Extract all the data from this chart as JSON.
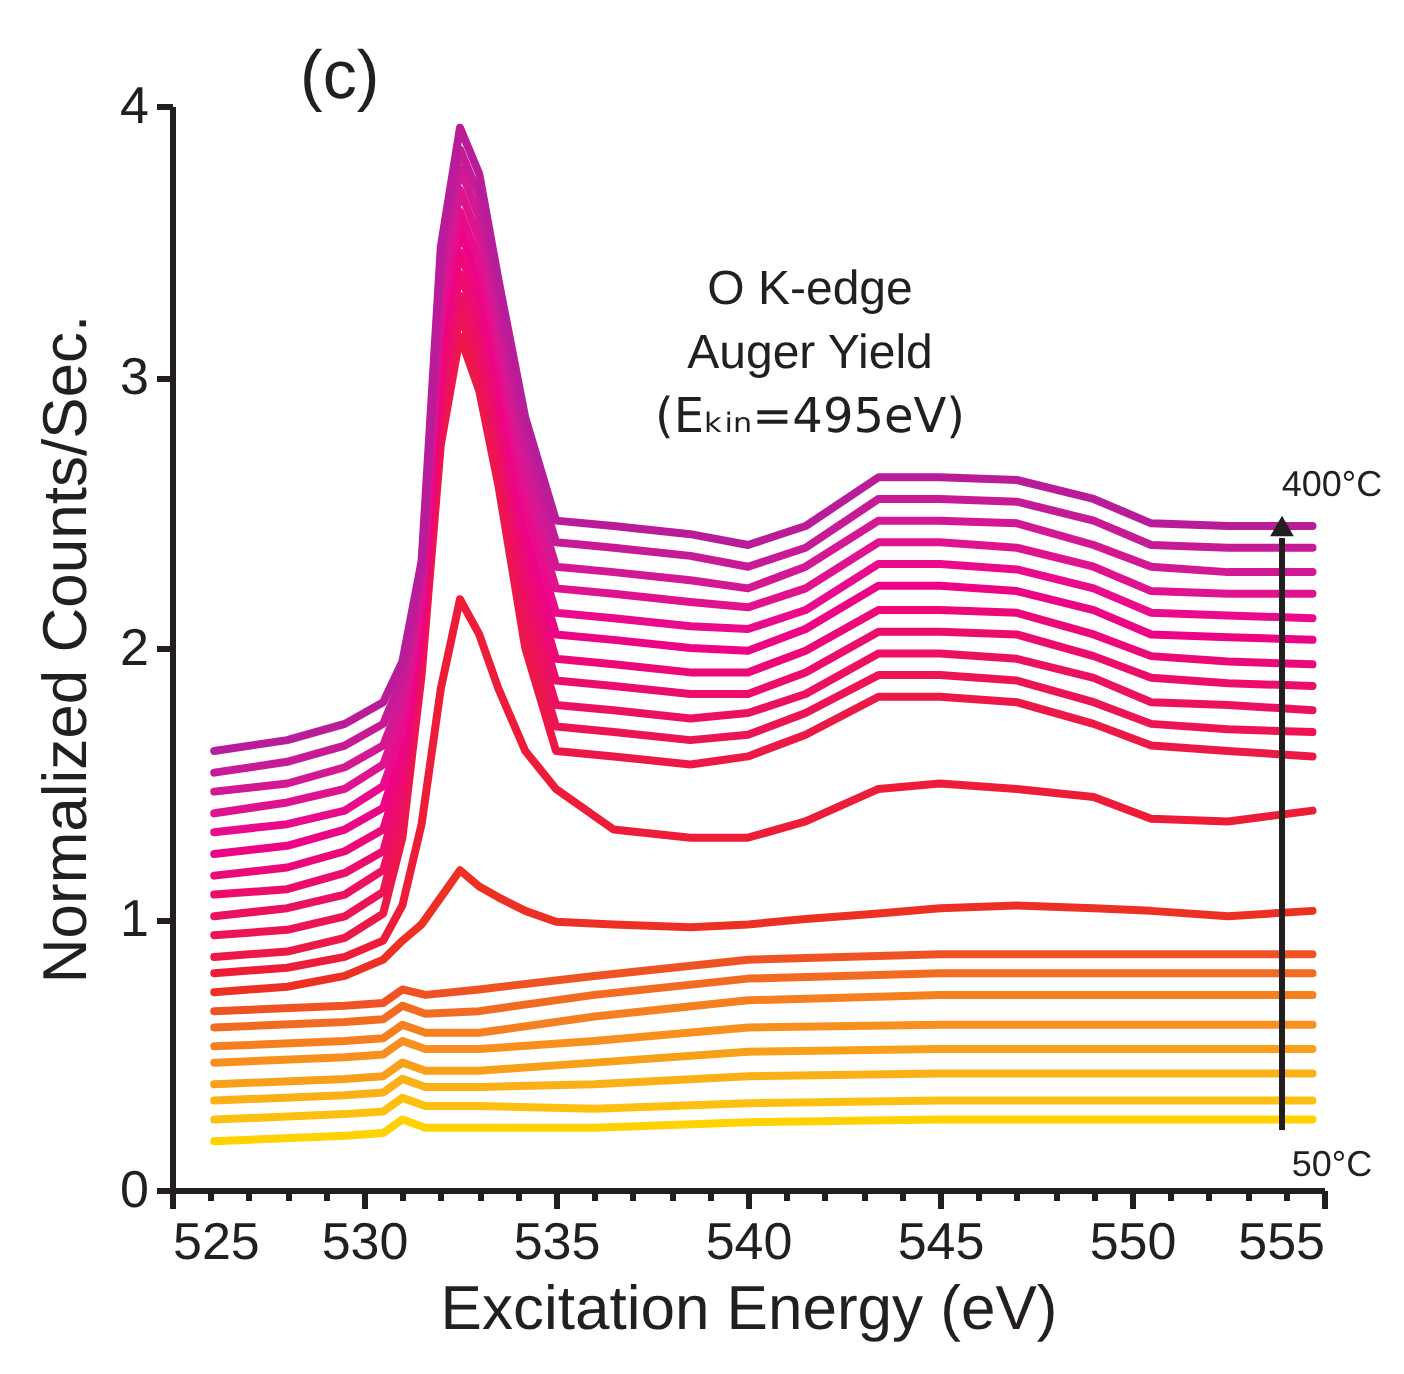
{
  "chart_data": {
    "type": "line",
    "xlabel": "Excitation Energy (eV)",
    "ylabel": "Normalized Counts/Sec.",
    "xlim": [
      525,
      555
    ],
    "ylim": [
      0,
      4
    ],
    "xticks": [
      525,
      {
        "value": 526,
        "label": null
      },
      {
        "value": 527,
        "label": null
      },
      {
        "value": 528,
        "label": null
      },
      {
        "value": 529,
        "label": null
      },
      530,
      {
        "value": 531,
        "label": null
      },
      {
        "value": 532,
        "label": null
      },
      {
        "value": 533,
        "label": null
      },
      {
        "value": 534,
        "label": null
      },
      535,
      {
        "value": 536,
        "label": null
      },
      {
        "value": 537,
        "label": null
      },
      {
        "value": 538,
        "label": null
      },
      {
        "value": 539,
        "label": null
      },
      540,
      {
        "value": 541,
        "label": null
      },
      {
        "value": 542,
        "label": null
      },
      {
        "value": 543,
        "label": null
      },
      {
        "value": 544,
        "label": null
      },
      545,
      {
        "value": 546,
        "label": null
      },
      {
        "value": 547,
        "label": null
      },
      {
        "value": 548,
        "label": null
      },
      {
        "value": 549,
        "label": null
      },
      550,
      {
        "value": 551,
        "label": null
      },
      {
        "value": 552,
        "label": null
      },
      {
        "value": 553,
        "label": null
      },
      {
        "value": 554,
        "label": null
      },
      555
    ],
    "yticks": [
      0,
      1,
      2,
      3,
      4
    ],
    "grid": false,
    "legend": false,
    "marker": "none",
    "line_style": "solid",
    "annotations": [
      "(c)",
      "O K-edge",
      "Auger Yield",
      "(Eₖᵢₙ=495eV)",
      "400°C",
      "50°C"
    ],
    "x": [
      526.1,
      528,
      529.5,
      530.5,
      531,
      531.5,
      532,
      532.5,
      533,
      533.5,
      534.2,
      535,
      536.5,
      538.5,
      540,
      541.5,
      543.4,
      545,
      547,
      549,
      550.5,
      552.5,
      554.7
    ],
    "series": [
      {
        "color": "#ffd200",
        "x": [
          526.1,
          529.5,
          530.5,
          531,
          531.6,
          533,
          536,
          540,
          545,
          550,
          554.7
        ],
        "values": [
          0.18,
          0.2,
          0.21,
          0.26,
          0.23,
          0.23,
          0.23,
          0.25,
          0.26,
          0.26,
          0.26
        ]
      },
      {
        "color": "#fdc010",
        "x": [
          526.1,
          529.5,
          530.5,
          531,
          531.6,
          533,
          536,
          540,
          545,
          550,
          554.7
        ],
        "values": [
          0.26,
          0.28,
          0.29,
          0.34,
          0.31,
          0.31,
          0.3,
          0.32,
          0.33,
          0.33,
          0.33
        ]
      },
      {
        "color": "#fbb017",
        "x": [
          526.1,
          529.5,
          530.5,
          531,
          531.6,
          533,
          536,
          540,
          545,
          550,
          554.7
        ],
        "values": [
          0.33,
          0.35,
          0.36,
          0.41,
          0.38,
          0.38,
          0.39,
          0.42,
          0.43,
          0.43,
          0.43
        ]
      },
      {
        "color": "#f9a01b",
        "x": [
          526.1,
          529.5,
          530.5,
          531,
          531.6,
          533,
          536,
          540,
          545,
          550,
          554.7
        ],
        "values": [
          0.39,
          0.41,
          0.42,
          0.47,
          0.44,
          0.44,
          0.47,
          0.51,
          0.52,
          0.52,
          0.52
        ]
      },
      {
        "color": "#f7901e",
        "x": [
          526.1,
          529.5,
          530.5,
          531,
          531.6,
          533,
          536,
          540,
          545,
          550,
          554.7
        ],
        "values": [
          0.47,
          0.49,
          0.5,
          0.55,
          0.52,
          0.52,
          0.55,
          0.6,
          0.61,
          0.61,
          0.61
        ]
      },
      {
        "color": "#f58020",
        "x": [
          526.1,
          529.5,
          530.5,
          531,
          531.6,
          533,
          536,
          540,
          545,
          550,
          554.7
        ],
        "values": [
          0.53,
          0.55,
          0.56,
          0.61,
          0.58,
          0.58,
          0.64,
          0.7,
          0.72,
          0.72,
          0.72
        ]
      },
      {
        "color": "#f26b22",
        "x": [
          526.1,
          529.5,
          530.5,
          531,
          531.6,
          533,
          536,
          540,
          545,
          550,
          554.7
        ],
        "values": [
          0.6,
          0.62,
          0.63,
          0.68,
          0.65,
          0.66,
          0.72,
          0.78,
          0.8,
          0.8,
          0.8
        ]
      },
      {
        "color": "#ef5323",
        "x": [
          526.1,
          529.5,
          530.5,
          531,
          531.6,
          533,
          536,
          540,
          545,
          550,
          554.7
        ],
        "values": [
          0.66,
          0.68,
          0.69,
          0.74,
          0.72,
          0.74,
          0.79,
          0.85,
          0.87,
          0.87,
          0.87
        ]
      },
      {
        "color": "#ed3024",
        "values": [
          0.73,
          0.75,
          0.79,
          0.85,
          0.92,
          0.98,
          1.08,
          1.18,
          1.12,
          1.08,
          1.03,
          0.99,
          0.98,
          0.97,
          0.98,
          1.0,
          1.02,
          1.04,
          1.05,
          1.04,
          1.03,
          1.01,
          1.03
        ]
      },
      {
        "color": "#ed1c38",
        "values": [
          0.8,
          0.82,
          0.86,
          0.92,
          1.05,
          1.35,
          1.85,
          2.18,
          2.05,
          1.85,
          1.62,
          1.48,
          1.33,
          1.3,
          1.3,
          1.36,
          1.48,
          1.5,
          1.48,
          1.45,
          1.37,
          1.36,
          1.4
        ]
      },
      {
        "color": "#ec1848",
        "values": [
          0.86,
          0.88,
          0.93,
          1.02,
          1.3,
          1.9,
          2.75,
          3.15,
          2.95,
          2.6,
          2.0,
          1.62,
          1.6,
          1.57,
          1.6,
          1.68,
          1.82,
          1.82,
          1.8,
          1.72,
          1.64,
          1.62,
          1.6
        ]
      },
      {
        "color": "#ec1455",
        "values": [
          0.94,
          0.96,
          1.01,
          1.1,
          1.37,
          1.94,
          2.82,
          3.23,
          3.03,
          2.68,
          2.09,
          1.71,
          1.69,
          1.66,
          1.68,
          1.76,
          1.9,
          1.9,
          1.88,
          1.8,
          1.72,
          1.7,
          1.69
        ]
      },
      {
        "color": "#ec1060",
        "values": [
          1.01,
          1.04,
          1.09,
          1.18,
          1.43,
          1.98,
          2.9,
          3.3,
          3.11,
          2.75,
          2.17,
          1.79,
          1.77,
          1.74,
          1.76,
          1.83,
          1.98,
          1.98,
          1.96,
          1.89,
          1.8,
          1.79,
          1.77
        ]
      },
      {
        "color": "#ec0c6c",
        "values": [
          1.09,
          1.11,
          1.17,
          1.25,
          1.5,
          2.03,
          2.97,
          3.38,
          3.19,
          2.83,
          2.26,
          1.88,
          1.86,
          1.83,
          1.83,
          1.91,
          2.06,
          2.06,
          2.05,
          1.97,
          1.89,
          1.87,
          1.86
        ]
      },
      {
        "color": "#ec0878",
        "values": [
          1.16,
          1.19,
          1.25,
          1.33,
          1.56,
          2.07,
          3.04,
          3.46,
          3.27,
          2.9,
          2.34,
          1.96,
          1.94,
          1.91,
          1.91,
          1.99,
          2.14,
          2.14,
          2.13,
          2.05,
          1.97,
          1.95,
          1.94
        ]
      },
      {
        "color": "#ec0484",
        "values": [
          1.24,
          1.27,
          1.33,
          1.41,
          1.63,
          2.11,
          3.12,
          3.54,
          3.35,
          2.98,
          2.43,
          2.05,
          2.03,
          2.0,
          1.99,
          2.07,
          2.23,
          2.23,
          2.21,
          2.14,
          2.05,
          2.04,
          2.03
        ]
      },
      {
        "color": "#ea0a8c",
        "values": [
          1.32,
          1.35,
          1.4,
          1.49,
          1.69,
          2.15,
          3.19,
          3.61,
          3.43,
          3.06,
          2.51,
          2.13,
          2.11,
          2.08,
          2.07,
          2.14,
          2.31,
          2.31,
          2.29,
          2.22,
          2.13,
          2.12,
          2.11
        ]
      },
      {
        "color": "#e0138f",
        "values": [
          1.39,
          1.43,
          1.48,
          1.57,
          1.76,
          2.19,
          3.26,
          3.69,
          3.51,
          3.13,
          2.6,
          2.22,
          2.2,
          2.17,
          2.15,
          2.22,
          2.39,
          2.39,
          2.37,
          2.3,
          2.21,
          2.2,
          2.2
        ]
      },
      {
        "color": "#d31893",
        "values": [
          1.47,
          1.5,
          1.56,
          1.64,
          1.82,
          2.24,
          3.33,
          3.77,
          3.59,
          3.21,
          2.68,
          2.3,
          2.28,
          2.25,
          2.22,
          2.3,
          2.47,
          2.47,
          2.46,
          2.38,
          2.3,
          2.28,
          2.28
        ]
      },
      {
        "color": "#c61a96",
        "values": [
          1.54,
          1.58,
          1.64,
          1.72,
          1.89,
          2.28,
          3.41,
          3.84,
          3.67,
          3.28,
          2.77,
          2.39,
          2.37,
          2.34,
          2.3,
          2.37,
          2.55,
          2.55,
          2.54,
          2.47,
          2.38,
          2.37,
          2.37
        ]
      },
      {
        "color": "#b81c98",
        "values": [
          1.62,
          1.66,
          1.72,
          1.8,
          1.95,
          2.32,
          3.48,
          3.92,
          3.75,
          3.36,
          2.85,
          2.47,
          2.45,
          2.42,
          2.38,
          2.45,
          2.63,
          2.63,
          2.62,
          2.55,
          2.46,
          2.45,
          2.45
        ]
      }
    ]
  }
}
